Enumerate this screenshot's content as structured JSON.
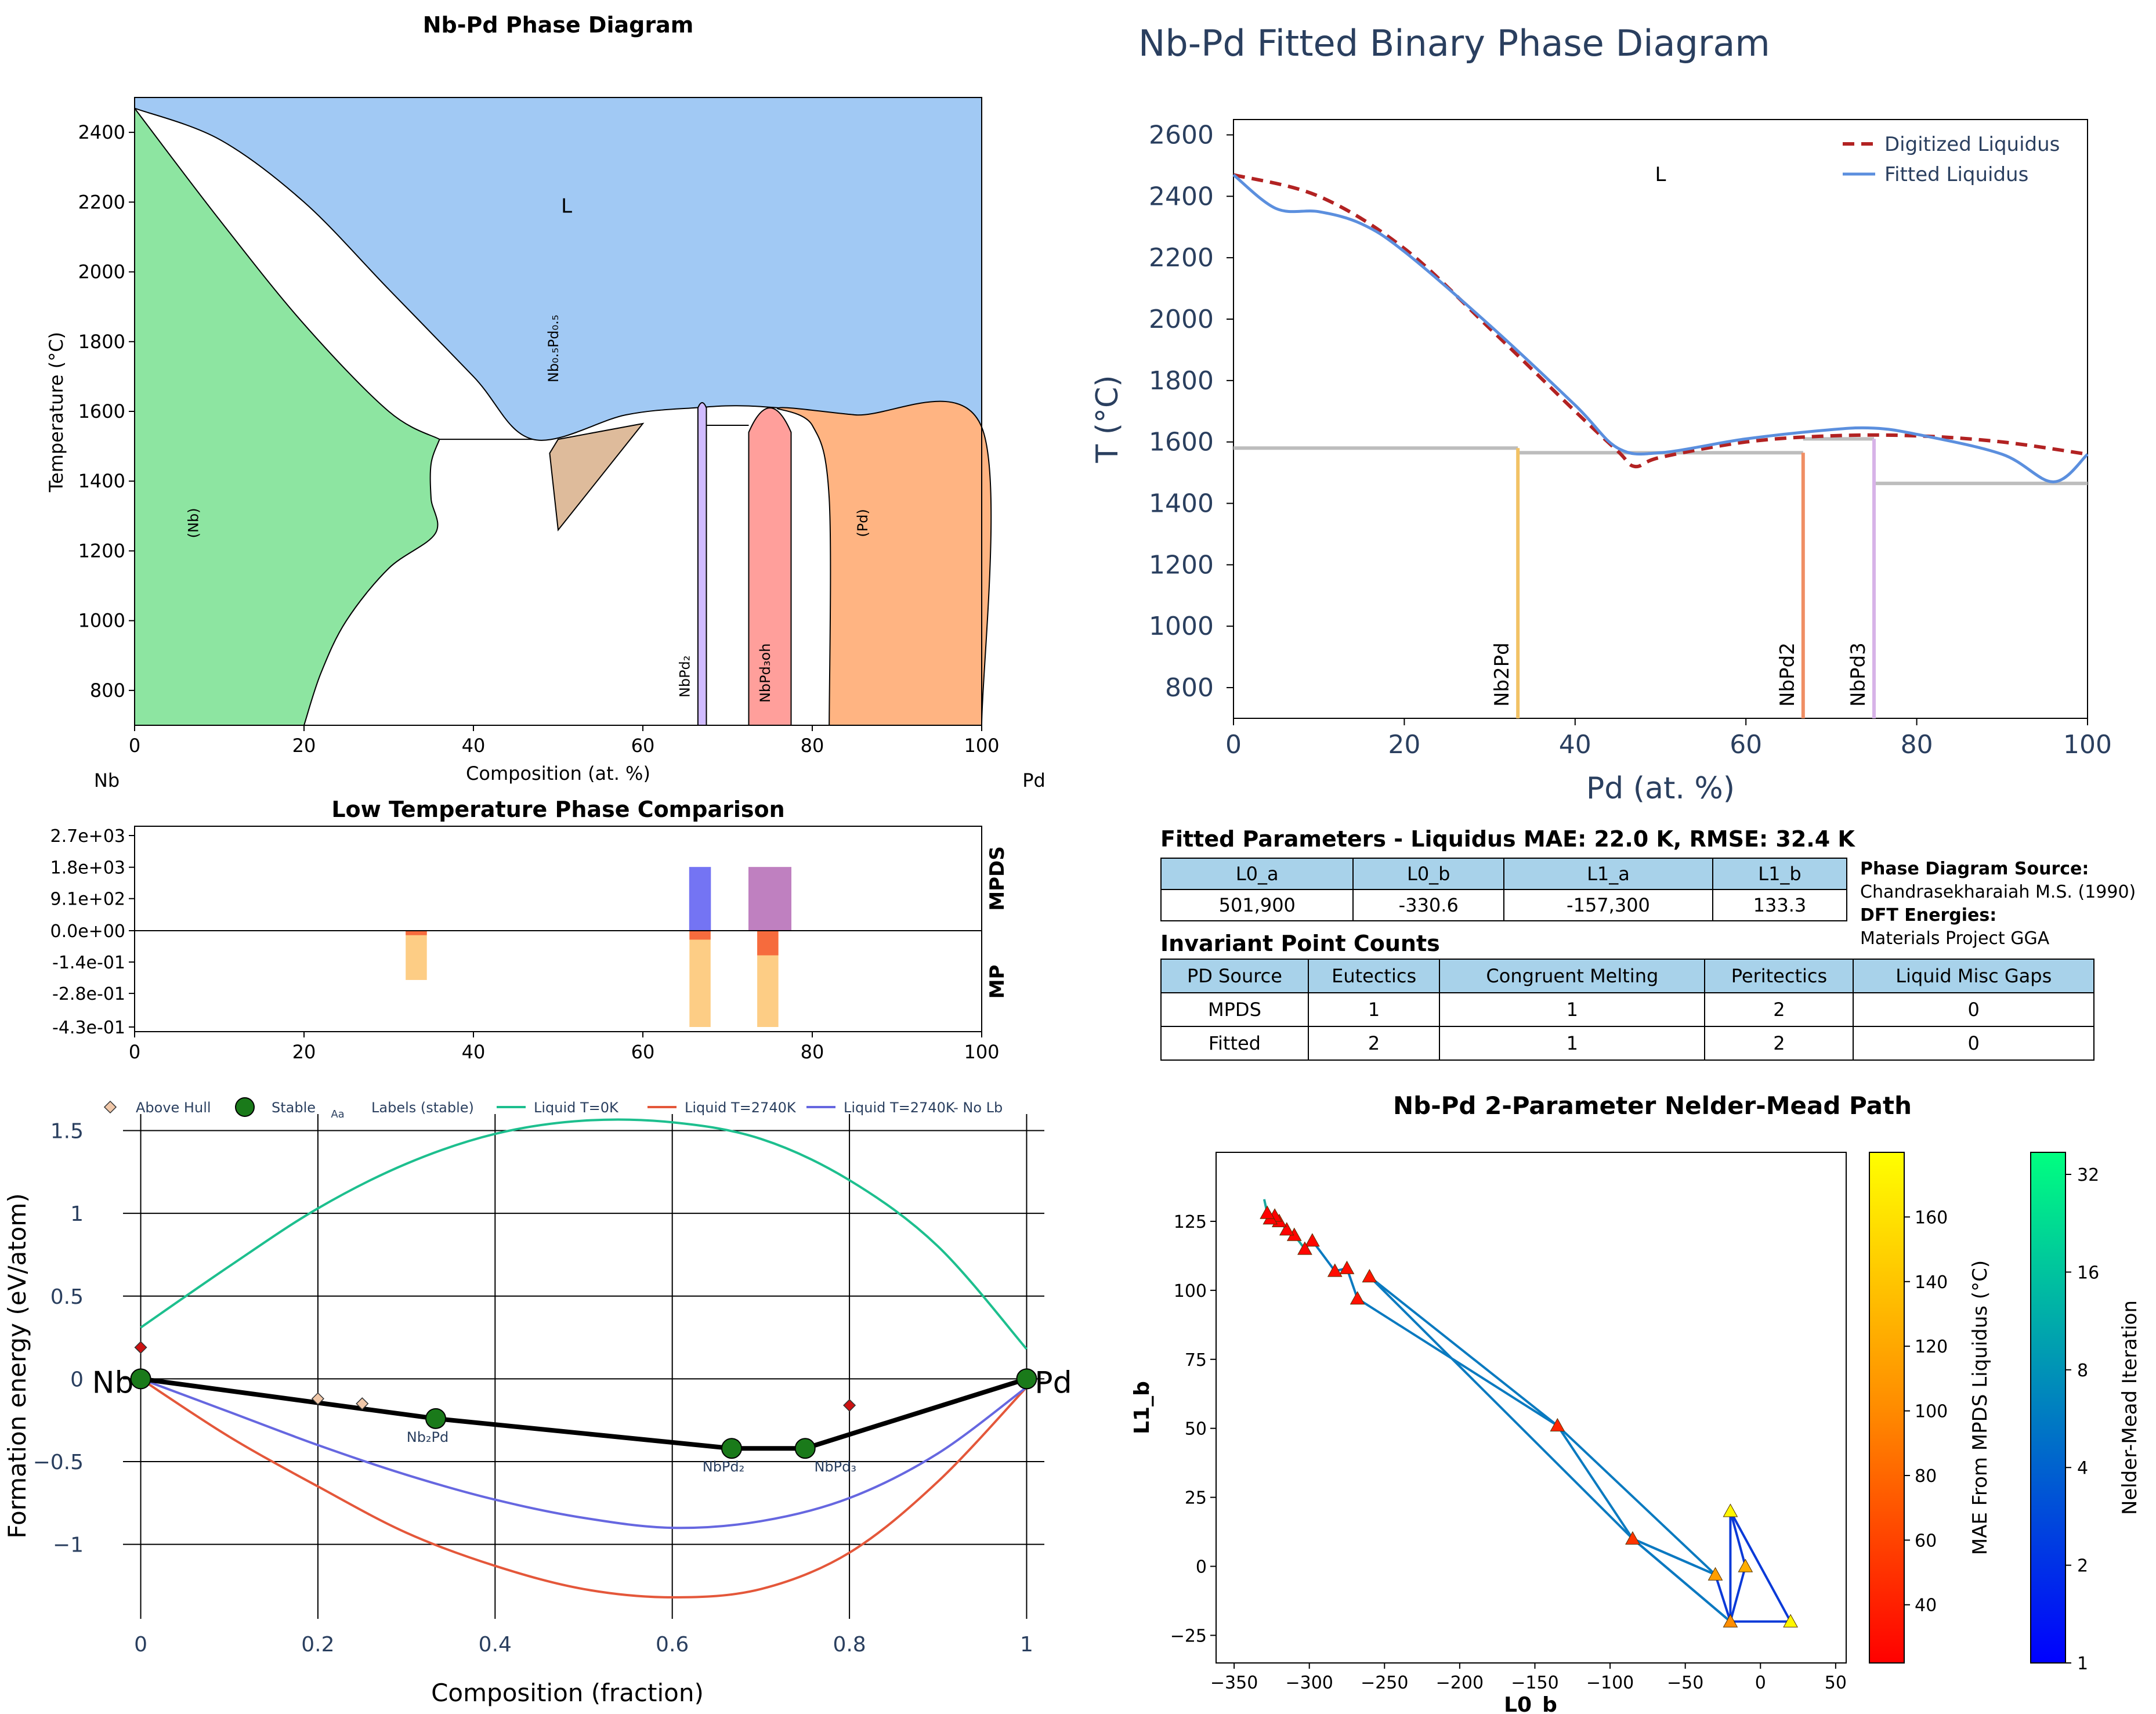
{
  "chart_data": [
    {
      "type": "phase-diagram",
      "title": "Nb-Pd Phase Diagram",
      "xlabel": "Composition (at. %)",
      "ylabel": "Temperature (°C)",
      "xlim": [
        0,
        100
      ],
      "ylim": [
        700,
        2500
      ],
      "x_ticks": [
        "0",
        "20",
        "40",
        "60",
        "80",
        "100"
      ],
      "y_ticks": [
        "800",
        "1000",
        "1200",
        "1400",
        "1600",
        "1800",
        "2000",
        "2200",
        "2400"
      ],
      "endpoint_left": "Nb",
      "endpoint_right": "Pd",
      "regions": [
        "L",
        "(Nb)",
        "(Pd)",
        "Nb₀.₅Pd₀.₅",
        "NbPd₂",
        "NbPd₃oh"
      ],
      "colors": {
        "liquid": "#a1c9f4",
        "bcc": "#8de5a1",
        "fcc": "#ffb482",
        "nbpd": "#debb9b",
        "nbpd2": "#d0bbff",
        "nbpd3": "#ff9f9b"
      },
      "boundaries": {
        "liquidus": [
          [
            0,
            2469
          ],
          [
            10,
            2380
          ],
          [
            20,
            2200
          ],
          [
            30,
            1950
          ],
          [
            40,
            1700
          ],
          [
            47,
            1520
          ],
          [
            58,
            1590
          ],
          [
            66,
            1610
          ],
          [
            73,
            1615
          ],
          [
            85,
            1590
          ],
          [
            100,
            1555
          ]
        ],
        "solidus_bcc": [
          [
            0,
            2469
          ],
          [
            10,
            2150
          ],
          [
            20,
            1850
          ],
          [
            30,
            1600
          ],
          [
            36,
            1520
          ]
        ],
        "eutectic_temperature": 1520,
        "nbpd2_x": [
          66.5,
          67.5
        ],
        "nbpd3_x": [
          72.5,
          77.5
        ]
      }
    },
    {
      "type": "line",
      "title": "Nb-Pd Fitted Binary Phase Diagram",
      "xlabel": "Pd (at. %)",
      "ylabel": "T (°C)",
      "xlim": [
        0,
        100
      ],
      "ylim": [
        700,
        2650
      ],
      "x_ticks": [
        "0",
        "20",
        "40",
        "60",
        "80",
        "100"
      ],
      "y_ticks": [
        "800",
        "1000",
        "1200",
        "1400",
        "1600",
        "1800",
        "2000",
        "2200",
        "2400",
        "2600"
      ],
      "region_label": "L",
      "series": [
        {
          "name": "Digitized Liquidus",
          "color": "#b22222",
          "dash": true,
          "points": [
            [
              0,
              2470
            ],
            [
              10,
              2400
            ],
            [
              20,
              2230
            ],
            [
              30,
              1970
            ],
            [
              40,
              1700
            ],
            [
              45,
              1570
            ],
            [
              47,
              1520
            ],
            [
              50,
              1550
            ],
            [
              60,
              1600
            ],
            [
              70,
              1620
            ],
            [
              80,
              1620
            ],
            [
              90,
              1600
            ],
            [
              100,
              1560
            ]
          ]
        },
        {
          "name": "Fitted Liquidus",
          "color": "#5b8fde",
          "dash": false,
          "points": [
            [
              0,
              2470
            ],
            [
              5,
              2360
            ],
            [
              10,
              2350
            ],
            [
              15,
              2310
            ],
            [
              20,
              2220
            ],
            [
              30,
              1980
            ],
            [
              40,
              1720
            ],
            [
              45,
              1580
            ],
            [
              50,
              1565
            ],
            [
              60,
              1610
            ],
            [
              70,
              1640
            ],
            [
              75,
              1645
            ],
            [
              80,
              1625
            ],
            [
              90,
              1560
            ],
            [
              96,
              1470
            ],
            [
              100,
              1560
            ]
          ]
        }
      ],
      "phase_lines": [
        {
          "label": "Nb2Pd",
          "x": 33.3,
          "color": "#f2c265"
        },
        {
          "label": "NbPd2",
          "x": 66.7,
          "color": "#f08e64"
        },
        {
          "label": "NbPd3",
          "x": 75,
          "color": "#d7b3e8"
        }
      ],
      "invariants": [
        {
          "x0": 0,
          "x1": 33.3,
          "T": 1580
        },
        {
          "x0": 33.3,
          "x1": 66.7,
          "T": 1565
        },
        {
          "x0": 66.7,
          "x1": 75,
          "T": 1610
        },
        {
          "x0": 75,
          "x1": 100,
          "T": 1465
        }
      ]
    },
    {
      "type": "bar",
      "title": "Low Temperature Phase Comparison",
      "xlim": [
        0,
        100
      ],
      "x_ticks": [
        "0",
        "20",
        "40",
        "60",
        "80",
        "100"
      ],
      "y_ticks": [
        "2.7e+03",
        "1.8e+03",
        "9.1e+02",
        "0.0e+00",
        "-1.4e-01",
        "-2.8e-01",
        "-4.3e-01"
      ],
      "upper_label": "MPDS",
      "lower_label": "MP",
      "upper_max": 2700,
      "lower_min": -0.43,
      "upper_bars": [
        {
          "x0": 65.5,
          "x1": 68,
          "top": 1800,
          "color": "#7474f3"
        },
        {
          "x0": 72.5,
          "x1": 77.5,
          "top": 1800,
          "color": "#bf80c0"
        }
      ],
      "lower_bars": [
        {
          "x0": 32,
          "x1": 34.5,
          "e_light": -0.22,
          "e_dark": -0.02
        },
        {
          "x0": 65.5,
          "x1": 68,
          "e_light": -0.43,
          "e_dark": -0.04
        },
        {
          "x0": 73.5,
          "x1": 76,
          "e_light": -0.43,
          "e_dark": -0.11
        }
      ]
    },
    {
      "type": "line",
      "xlabel": "Composition (fraction)",
      "ylabel": "Formation energy (eV/atom)",
      "xlim": [
        -0.02,
        1.02
      ],
      "ylim": [
        -1.45,
        1.6
      ],
      "x_ticks": [
        "0",
        "0.2",
        "0.4",
        "0.6",
        "0.8",
        "1"
      ],
      "y_ticks": [
        "1.5",
        "1",
        "0.5",
        "0",
        "−0.5",
        "−1"
      ],
      "endpoint_left": "Nb",
      "endpoint_right": "Pd",
      "legend": [
        "Above Hull",
        "Stable",
        "Labels (stable)",
        "Liquid T=0K",
        "Liquid T=2740K",
        "Liquid T=2740K- No Lb"
      ],
      "legend_marker_text": "Aa",
      "hull": [
        [
          0,
          0
        ],
        [
          0.333,
          -0.24
        ],
        [
          0.667,
          -0.42
        ],
        [
          0.75,
          -0.42
        ],
        [
          1,
          0
        ]
      ],
      "stable": [
        [
          0,
          0
        ],
        [
          0.333,
          -0.24
        ],
        [
          0.667,
          -0.42
        ],
        [
          0.75,
          -0.42
        ],
        [
          1,
          0
        ]
      ],
      "stable_labels": [
        {
          "x": 0.333,
          "y": -0.24,
          "text": "Nb₂Pd"
        },
        {
          "x": 0.667,
          "y": -0.42,
          "text": "NbPd₂"
        },
        {
          "x": 0.75,
          "y": -0.42,
          "text": "NbPd₃"
        }
      ],
      "above_hull": [
        [
          0,
          0.19
        ],
        [
          0.2,
          -0.12
        ],
        [
          0.25,
          -0.15
        ],
        [
          0.8,
          -0.16
        ],
        [
          1,
          0.03
        ]
      ],
      "series": [
        {
          "name": "Liquid T=0K",
          "color": "#1dbf8e",
          "points": [
            [
              0,
              0.31
            ],
            [
              0.1,
              0.68
            ],
            [
              0.2,
              1.03
            ],
            [
              0.3,
              1.3
            ],
            [
              0.4,
              1.48
            ],
            [
              0.5,
              1.56
            ],
            [
              0.6,
              1.55
            ],
            [
              0.7,
              1.45
            ],
            [
              0.8,
              1.2
            ],
            [
              0.9,
              0.8
            ],
            [
              1,
              0.18
            ]
          ]
        },
        {
          "name": "Liquid T=2740K",
          "color": "#e4573a",
          "points": [
            [
              0,
              0
            ],
            [
              0.1,
              -0.35
            ],
            [
              0.2,
              -0.65
            ],
            [
              0.3,
              -0.93
            ],
            [
              0.4,
              -1.13
            ],
            [
              0.5,
              -1.27
            ],
            [
              0.6,
              -1.32
            ],
            [
              0.7,
              -1.27
            ],
            [
              0.8,
              -1.05
            ],
            [
              0.9,
              -0.62
            ],
            [
              1,
              -0.05
            ]
          ]
        },
        {
          "name": "Liquid T=2740K- No Lb",
          "color": "#6667e0",
          "points": [
            [
              0,
              0
            ],
            [
              0.1,
              -0.2
            ],
            [
              0.2,
              -0.4
            ],
            [
              0.3,
              -0.58
            ],
            [
              0.4,
              -0.73
            ],
            [
              0.5,
              -0.84
            ],
            [
              0.6,
              -0.9
            ],
            [
              0.7,
              -0.86
            ],
            [
              0.8,
              -0.72
            ],
            [
              0.9,
              -0.45
            ],
            [
              1,
              -0.05
            ]
          ]
        }
      ]
    },
    {
      "type": "scatter",
      "title": "Nb-Pd 2-Parameter Nelder-Mead Path",
      "xlabel": "L0_b",
      "ylabel": "L1_b",
      "xlim": [
        -362,
        57
      ],
      "ylim": [
        -35,
        150
      ],
      "x_ticks": [
        "−350",
        "−300",
        "−250",
        "−200",
        "−150",
        "−100",
        "−50",
        "0",
        "50"
      ],
      "y_ticks": [
        "125",
        "100",
        "75",
        "50",
        "25",
        "0",
        "−25"
      ],
      "colorbar_mae": {
        "label": "MAE From MPDS Liquidus (°C)",
        "ticks": [
          "40",
          "60",
          "80",
          "100",
          "120",
          "140",
          "160"
        ],
        "min": 22,
        "max": 180
      },
      "colorbar_iter": {
        "label": "Nelder-Mead Iteration",
        "ticks": [
          "1",
          "2",
          "4",
          "8",
          "16",
          "32"
        ]
      },
      "points": [
        [
          -20,
          20,
          175
        ],
        [
          -10,
          0,
          130
        ],
        [
          20,
          -20,
          175
        ],
        [
          -30,
          -3,
          120
        ],
        [
          -20,
          -20,
          110
        ],
        [
          -85,
          10,
          55
        ],
        [
          -135,
          51,
          45
        ],
        [
          -260,
          105,
          35
        ],
        [
          -268,
          97,
          32
        ],
        [
          -275,
          108,
          30
        ],
        [
          -283,
          107,
          30
        ],
        [
          -298,
          118,
          26
        ],
        [
          -303,
          115,
          26
        ],
        [
          -310,
          120,
          25
        ],
        [
          -315,
          122,
          24
        ],
        [
          -320,
          125,
          23
        ],
        [
          -323,
          127,
          23
        ],
        [
          -326,
          126,
          23
        ],
        [
          -328,
          128,
          22
        ]
      ],
      "path": [
        [
          -20,
          20
        ],
        [
          -20,
          -20
        ],
        [
          20,
          -20
        ],
        [
          -20,
          20
        ],
        [
          -10,
          0
        ],
        [
          -20,
          -20
        ],
        [
          -30,
          -3
        ],
        [
          -85,
          10
        ],
        [
          -20,
          -20
        ],
        [
          -85,
          10
        ],
        [
          -135,
          51
        ],
        [
          -30,
          -3
        ],
        [
          -85,
          10
        ],
        [
          -260,
          105
        ],
        [
          -135,
          51
        ],
        [
          -268,
          97
        ],
        [
          -275,
          108
        ],
        [
          -283,
          107
        ],
        [
          -298,
          118
        ],
        [
          -303,
          115
        ],
        [
          -310,
          120
        ],
        [
          -315,
          122
        ],
        [
          -320,
          125
        ],
        [
          -323,
          127
        ],
        [
          -326,
          126
        ],
        [
          -328,
          128
        ],
        [
          -330,
          133
        ]
      ]
    }
  ],
  "tables": {
    "fitted_title": "Fitted Parameters - Liquidus MAE: 22.0 K, RMSE: 32.4 K",
    "fitted_headers": [
      "L0_a",
      "L0_b",
      "L1_a",
      "L1_b"
    ],
    "fitted_values": [
      "501,900",
      "-330.6",
      "-157,300",
      "133.3"
    ],
    "source_heading": "Phase Diagram Source:",
    "source_value": "Chandrasekharaiah M.S. (1990)",
    "dft_heading": "DFT Energies:",
    "dft_value": "Materials Project GGA",
    "invariant_title": "Invariant Point Counts",
    "invariant_headers": [
      "PD Source",
      "Eutectics",
      "Congruent Melting",
      "Peritectics",
      "Liquid Misc Gaps"
    ],
    "invariant_rows": [
      [
        "MPDS",
        "1",
        "1",
        "2",
        "0"
      ],
      [
        "Fitted",
        "2",
        "1",
        "2",
        "0"
      ]
    ]
  }
}
